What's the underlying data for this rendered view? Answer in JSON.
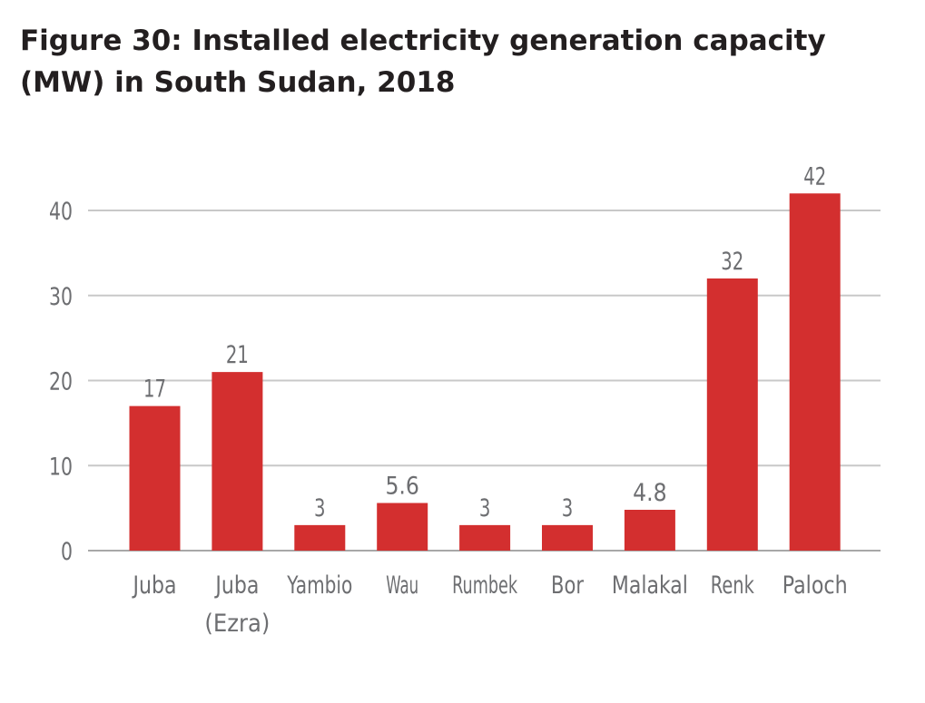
{
  "title_lines": [
    "Figure 30: Installed electricity generation capacity",
    "(MW) in South Sudan, 2018"
  ],
  "colors": {
    "bar": "#d32f2f",
    "grid": "#c8c8c8",
    "text": "#6d6e71",
    "title": "#231f20"
  },
  "chart_data": {
    "type": "bar",
    "title": "Figure 30: Installed electricity generation capacity (MW) in South Sudan, 2018",
    "categories": [
      [
        "Juba"
      ],
      [
        "Juba",
        "(Ezra)"
      ],
      [
        "Yambio"
      ],
      [
        "Wau"
      ],
      [
        "Rumbek"
      ],
      [
        "Bor"
      ],
      [
        "Malakal"
      ],
      [
        "Renk"
      ],
      [
        "Paloch"
      ]
    ],
    "values": [
      17,
      21,
      3,
      5.6,
      3,
      3,
      4.8,
      32,
      42
    ],
    "value_labels": [
      "17",
      "21",
      "3",
      "5.6",
      "3",
      "3",
      "4.8",
      "32",
      "42"
    ],
    "y_ticks": [
      0,
      10,
      20,
      30,
      40
    ],
    "ylim": [
      0,
      40
    ],
    "grid": true,
    "legend": "none"
  }
}
